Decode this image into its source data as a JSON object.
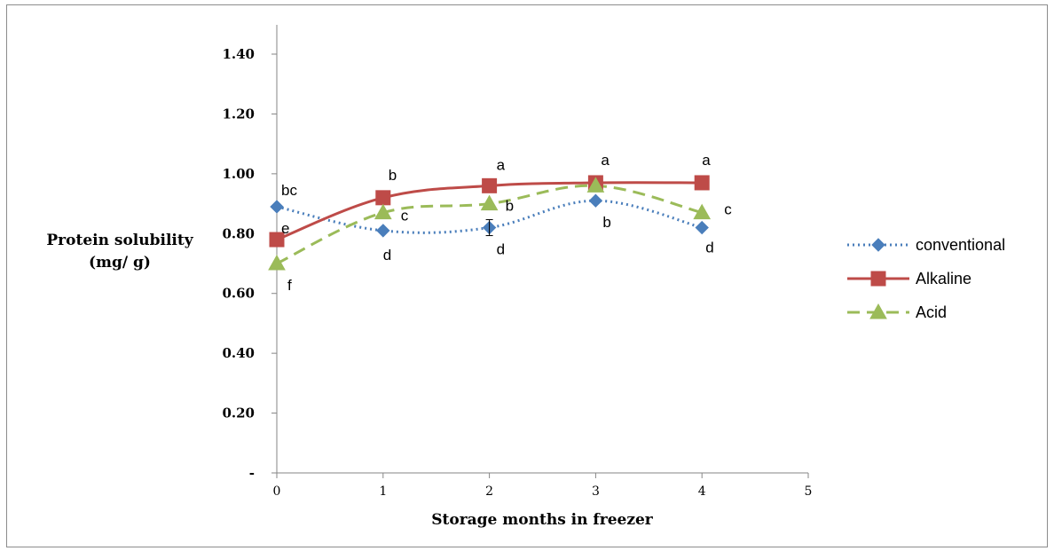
{
  "chart_data": {
    "type": "line",
    "xlabel": "Storage months in freezer",
    "ylabel": [
      "Protein solubility",
      "(mg/ g)"
    ],
    "x": [
      0,
      1,
      2,
      3,
      4
    ],
    "xlim": [
      0,
      5
    ],
    "x_ticks": [
      "0",
      "1",
      "2",
      "3",
      "4",
      "5"
    ],
    "ylim": [
      0,
      1.4
    ],
    "y_ticks": [
      "-",
      "0.20",
      "0.40",
      "0.60",
      "0.80",
      "1.00",
      "1.20",
      "1.40"
    ],
    "grid": false,
    "legend_position": "right",
    "series": [
      {
        "name": "conventional",
        "color": "#4a7ebb",
        "line_style": "dotted",
        "marker": "diamond",
        "values": [
          0.89,
          0.81,
          0.82,
          0.91,
          0.82
        ],
        "labels": [
          "bc",
          "d",
          "d",
          "b",
          "d"
        ]
      },
      {
        "name": "Alkaline",
        "color": "#be4b48",
        "line_style": "solid-smooth",
        "marker": "square",
        "values": [
          0.78,
          0.92,
          0.96,
          0.97,
          0.97
        ],
        "labels": [
          "e",
          "b",
          "a",
          "a",
          "a"
        ]
      },
      {
        "name": "Acid",
        "color": "#9bbb59",
        "line_style": "dashed",
        "marker": "triangle",
        "values": [
          0.7,
          0.87,
          0.9,
          0.96,
          0.87
        ],
        "labels": [
          "f",
          "c",
          "b",
          "",
          "c"
        ]
      }
    ]
  }
}
